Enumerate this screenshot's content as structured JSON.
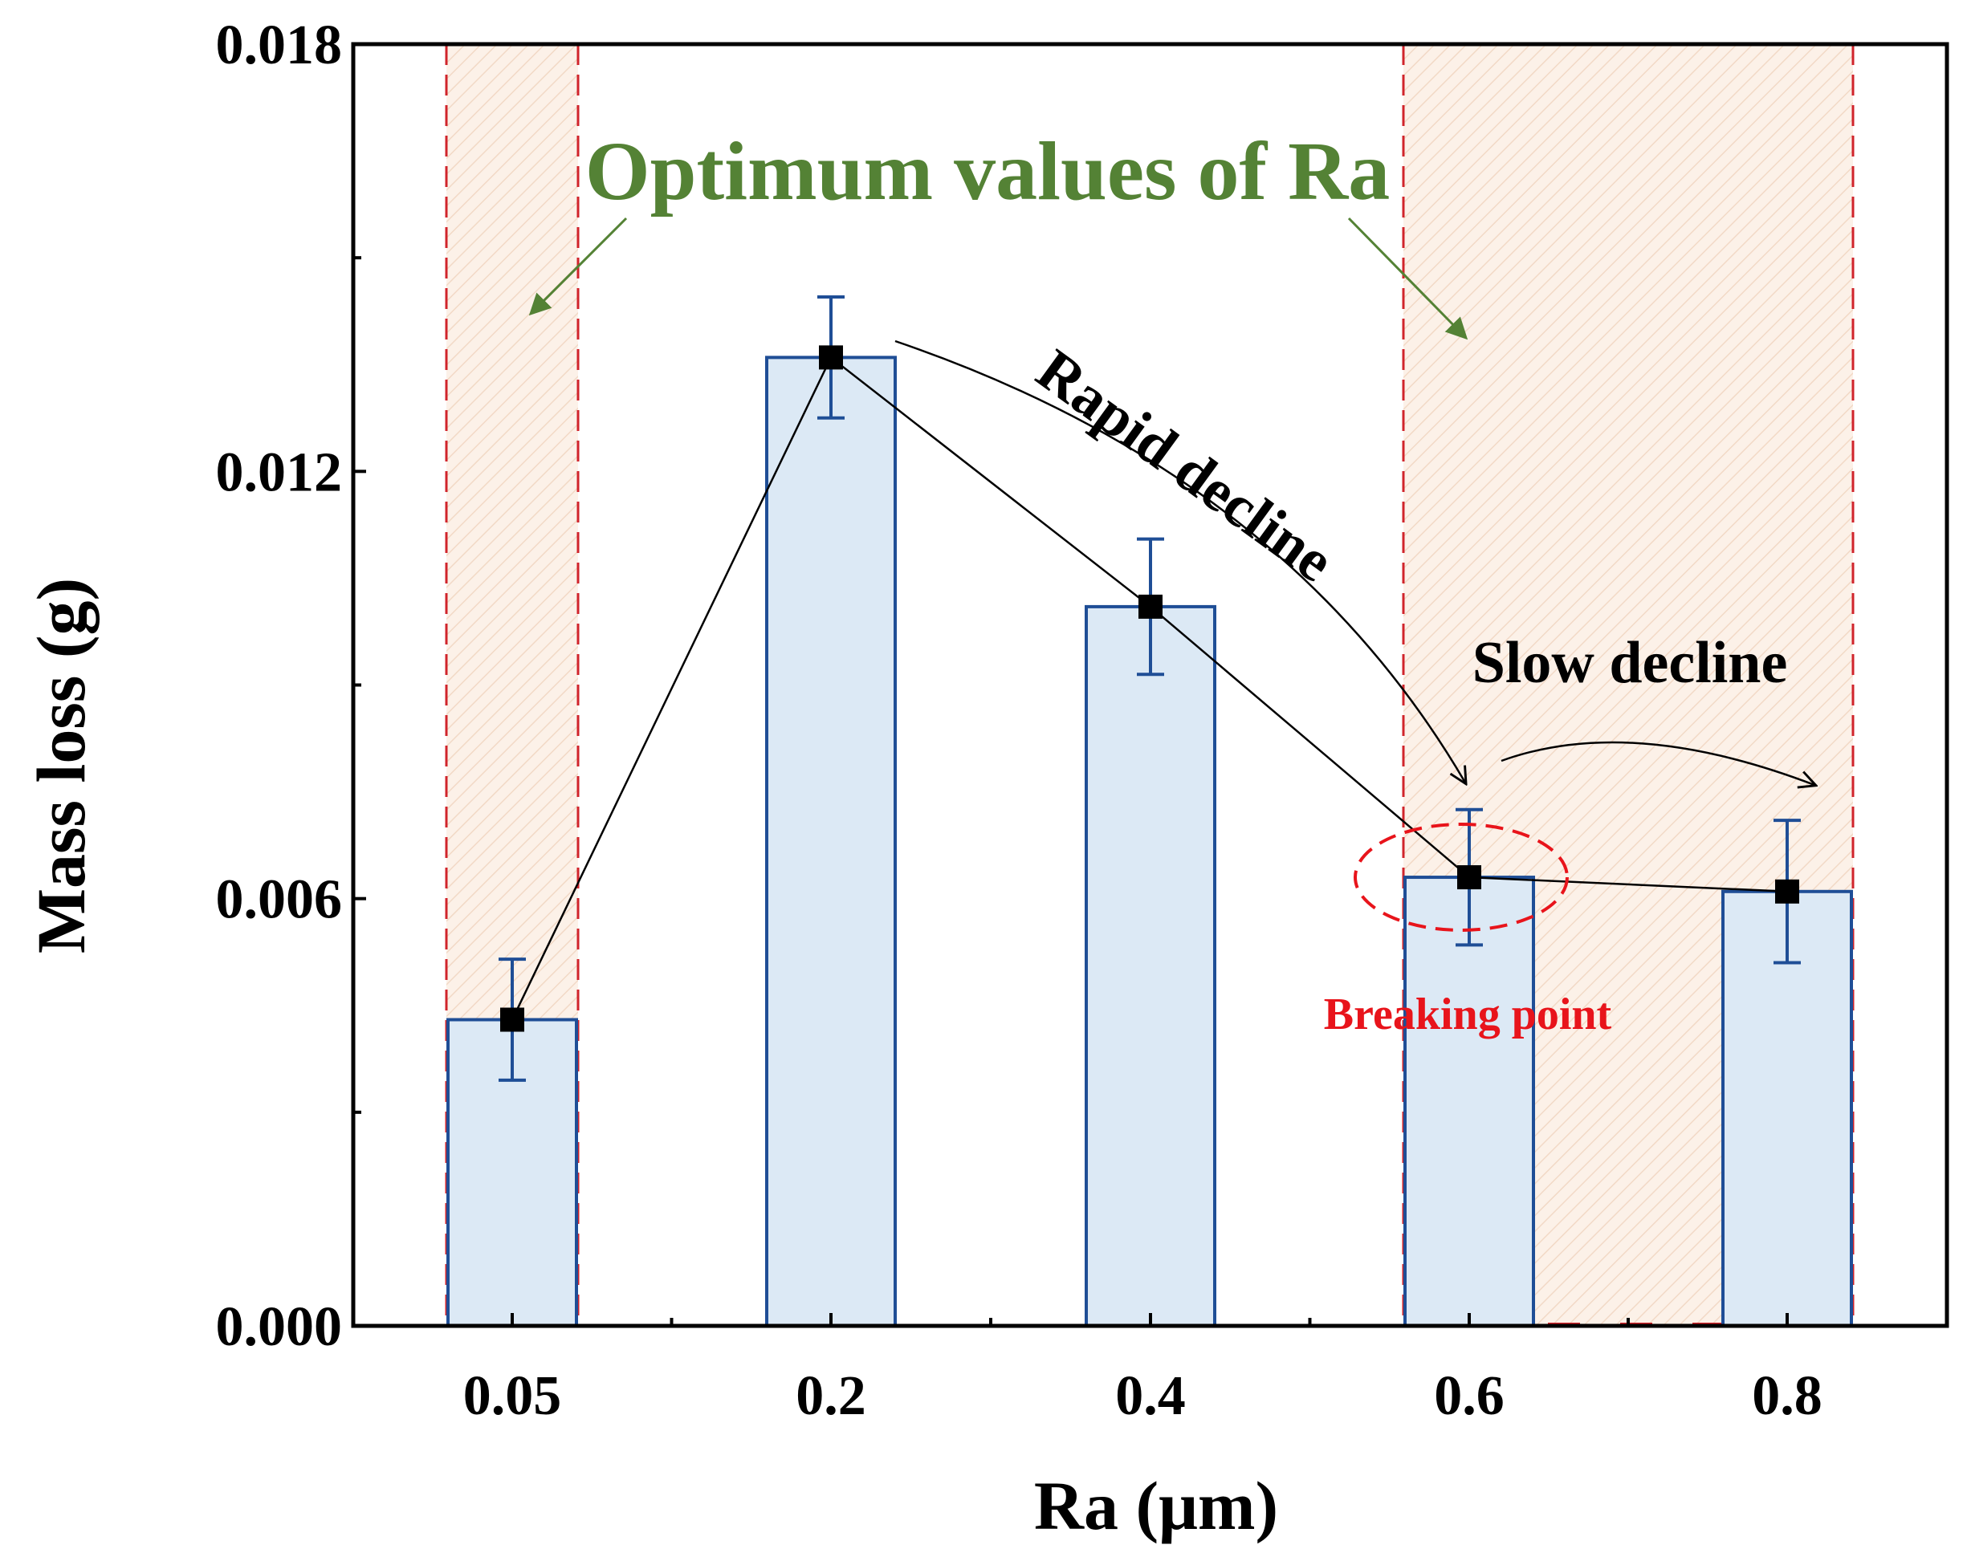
{
  "chart_data": {
    "type": "bar",
    "categories": [
      "0.05",
      "0.2",
      "0.4",
      "0.6",
      "0.8"
    ],
    "values": [
      0.0043,
      0.0136,
      0.0101,
      0.0063,
      0.0061
    ],
    "error": [
      0.00085,
      0.00085,
      0.00095,
      0.00095,
      0.001
    ],
    "line_overlay": true,
    "xlabel": "Ra (μm)",
    "ylabel": "Mass loss (g)",
    "ylim": [
      0,
      0.018
    ],
    "yticks": [
      "0.000",
      "0.006",
      "0.012",
      "0.018"
    ],
    "grid": false,
    "highlight_regions": [
      {
        "from_category": "0.05",
        "to_category": "0.05"
      },
      {
        "from_category": "0.6",
        "to_category": "0.8"
      }
    ],
    "annotations": {
      "optimum": "Optimum values of Ra",
      "rapid": "Rapid decline",
      "slow": "Slow decline",
      "breaking": "Breaking point"
    },
    "colors": {
      "bar_fill": "#dce9f5",
      "bar_stroke": "#1f4e96",
      "error_bar": "#1f4e96",
      "marker": "#000000",
      "region_line": "#d0242b",
      "region_fill": "#fbeee4",
      "annotation_green": "#548235",
      "annotation_red": "#e8141b"
    }
  }
}
